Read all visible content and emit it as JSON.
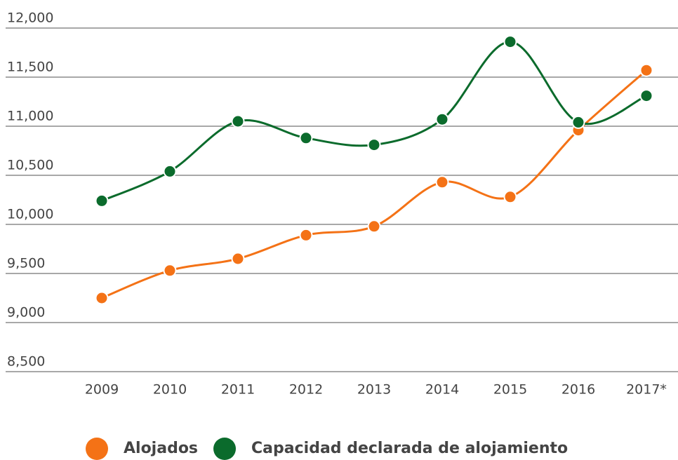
{
  "chart_data": {
    "type": "line",
    "categories": [
      "2009",
      "2010",
      "2011",
      "2012",
      "2013",
      "2014",
      "2015",
      "2016",
      "2017*"
    ],
    "series": [
      {
        "name": "Alojados",
        "color": "#f47216",
        "values": [
          9250,
          9530,
          9650,
          9890,
          9980,
          10430,
          10280,
          10960,
          11570
        ]
      },
      {
        "name": "Capacidad declarada de alojamiento",
        "color": "#0b6b2c",
        "values": [
          10240,
          10540,
          11050,
          10880,
          10810,
          11070,
          11860,
          11040,
          11310
        ]
      }
    ],
    "ylim": [
      8500,
      12000
    ],
    "yticks": [
      {
        "value": 8500,
        "label": "8,500"
      },
      {
        "value": 9000,
        "label": "9,000"
      },
      {
        "value": 9500,
        "label": "9,500"
      },
      {
        "value": 10000,
        "label": "10,000"
      },
      {
        "value": 10500,
        "label": "10,500"
      },
      {
        "value": 11000,
        "label": "11,000"
      },
      {
        "value": 11500,
        "label": "11,500"
      },
      {
        "value": 12000,
        "label": "12,000"
      }
    ],
    "grid": true,
    "legend": "bottom",
    "smooth": true
  }
}
